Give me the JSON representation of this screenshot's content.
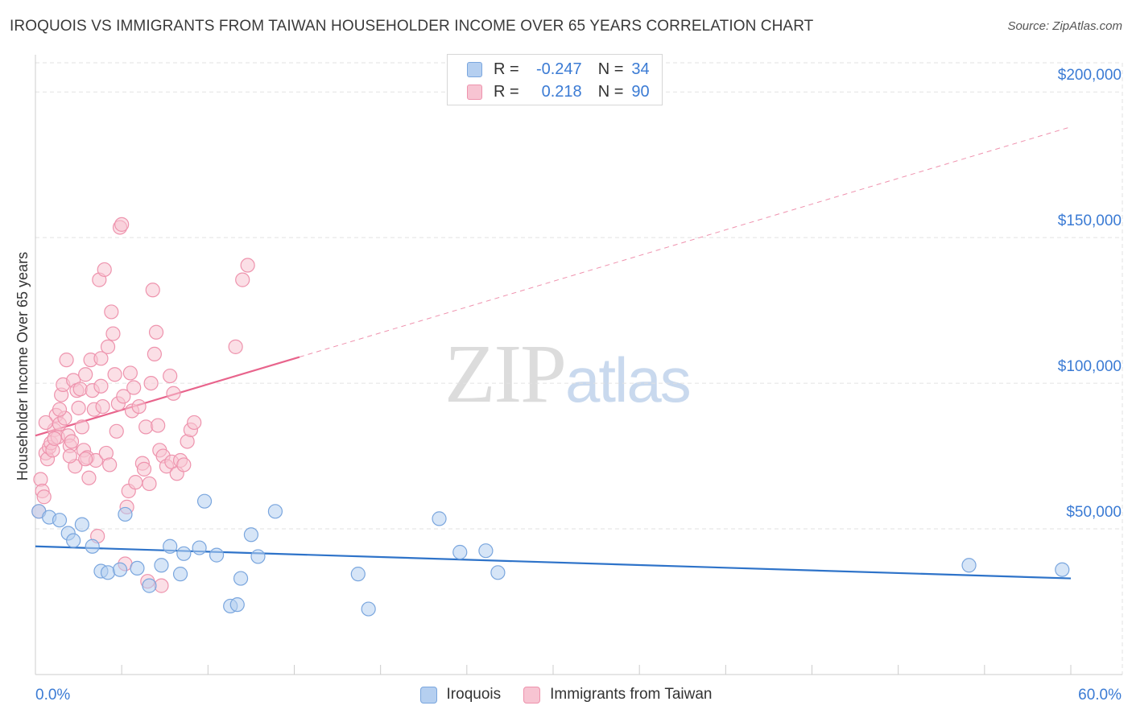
{
  "header": {
    "title": "IROQUOIS VS IMMIGRANTS FROM TAIWAN HOUSEHOLDER INCOME OVER 65 YEARS CORRELATION CHART",
    "source": "Source: ZipAtlas.com"
  },
  "watermark": {
    "zip": "ZIP",
    "atlas": "atlas"
  },
  "legend": {
    "rows": [
      {
        "r_label": "R =",
        "r_value": "-0.247",
        "n_label": "N =",
        "n_value": "34"
      },
      {
        "r_label": "R =",
        "r_value": "0.218",
        "n_label": "N =",
        "n_value": "90"
      }
    ]
  },
  "chart_data": {
    "type": "scatter",
    "title": "IROQUOIS VS IMMIGRANTS FROM TAIWAN HOUSEHOLDER INCOME OVER 65 YEARS CORRELATION CHART",
    "xlabel": "",
    "ylabel": "Householder Income Over 65 years",
    "xlim": [
      0,
      60
    ],
    "ylim": [
      0,
      210000
    ],
    "x_tick_labels": [
      "0.0%",
      "60.0%"
    ],
    "y_ticks": [
      {
        "value": 50000,
        "label": "$50,000"
      },
      {
        "value": 100000,
        "label": "$100,000"
      },
      {
        "value": 150000,
        "label": "$150,000"
      },
      {
        "value": 200000,
        "label": "$200,000"
      }
    ],
    "grid": true,
    "legend_position": "top-center",
    "colors": {
      "iroquois_fill": "#b5cff0",
      "iroquois_stroke": "#7aa6de",
      "iroquois_line": "#2e73c9",
      "taiwan_fill": "#f7c4d2",
      "taiwan_stroke": "#ee93ad",
      "taiwan_line": "#e8648c",
      "grid": "#e2e2e2",
      "axis_label": "#3b7bd4"
    },
    "series": [
      {
        "name": "Iroquois",
        "r": -0.247,
        "n": 34,
        "trend": {
          "x0": 0,
          "y0": 44000,
          "x1": 60,
          "y1": 33000,
          "dashed_extension_to": null
        },
        "points": [
          [
            0.2,
            56000
          ],
          [
            0.8,
            54000
          ],
          [
            1.4,
            53000
          ],
          [
            1.9,
            48500
          ],
          [
            2.2,
            46000
          ],
          [
            2.7,
            51500
          ],
          [
            3.3,
            44000
          ],
          [
            3.8,
            35500
          ],
          [
            4.2,
            35000
          ],
          [
            4.9,
            36000
          ],
          [
            5.2,
            55000
          ],
          [
            5.9,
            36500
          ],
          [
            6.6,
            30500
          ],
          [
            7.3,
            37500
          ],
          [
            7.8,
            44000
          ],
          [
            8.4,
            34500
          ],
          [
            8.6,
            41500
          ],
          [
            9.5,
            43500
          ],
          [
            9.8,
            59500
          ],
          [
            10.5,
            41000
          ],
          [
            11.3,
            23500
          ],
          [
            11.7,
            24000
          ],
          [
            11.9,
            33000
          ],
          [
            12.5,
            48000
          ],
          [
            12.9,
            40500
          ],
          [
            13.9,
            56000
          ],
          [
            18.7,
            34500
          ],
          [
            19.3,
            22500
          ],
          [
            23.4,
            53500
          ],
          [
            24.6,
            42000
          ],
          [
            26.1,
            42500
          ],
          [
            26.8,
            35000
          ],
          [
            54.1,
            37500
          ],
          [
            59.5,
            36000
          ]
        ]
      },
      {
        "name": "Immigrants from Taiwan",
        "r": 0.218,
        "n": 90,
        "trend": {
          "x0": 0,
          "y0": 82000,
          "x1": 15.3,
          "y1": 109000,
          "dashed_extension_to": [
            60,
            188000
          ]
        },
        "points": [
          [
            0.3,
            67000
          ],
          [
            0.4,
            63000
          ],
          [
            0.5,
            61000
          ],
          [
            0.6,
            76000
          ],
          [
            0.7,
            74000
          ],
          [
            0.8,
            78000
          ],
          [
            0.9,
            79500
          ],
          [
            1.0,
            77000
          ],
          [
            1.1,
            84000
          ],
          [
            1.2,
            89000
          ],
          [
            1.3,
            81500
          ],
          [
            1.4,
            86000
          ],
          [
            1.5,
            96000
          ],
          [
            1.6,
            99500
          ],
          [
            1.7,
            88000
          ],
          [
            1.8,
            108000
          ],
          [
            1.9,
            82000
          ],
          [
            2.0,
            78500
          ],
          [
            2.1,
            80000
          ],
          [
            2.2,
            101000
          ],
          [
            2.3,
            71500
          ],
          [
            2.4,
            97500
          ],
          [
            2.5,
            91500
          ],
          [
            2.6,
            98000
          ],
          [
            2.7,
            85000
          ],
          [
            2.8,
            77000
          ],
          [
            2.9,
            103000
          ],
          [
            3.0,
            74500
          ],
          [
            3.1,
            67500
          ],
          [
            3.2,
            108000
          ],
          [
            3.3,
            97500
          ],
          [
            3.4,
            91000
          ],
          [
            3.5,
            73500
          ],
          [
            3.6,
            47500
          ],
          [
            3.7,
            135500
          ],
          [
            3.8,
            99000
          ],
          [
            3.9,
            92000
          ],
          [
            4.0,
            139000
          ],
          [
            4.1,
            76000
          ],
          [
            4.2,
            112500
          ],
          [
            4.3,
            72000
          ],
          [
            4.4,
            124500
          ],
          [
            4.5,
            117000
          ],
          [
            4.6,
            103000
          ],
          [
            4.7,
            83500
          ],
          [
            4.8,
            93000
          ],
          [
            4.9,
            153500
          ],
          [
            5.0,
            154500
          ],
          [
            5.1,
            95500
          ],
          [
            5.2,
            38000
          ],
          [
            5.3,
            57500
          ],
          [
            5.4,
            63000
          ],
          [
            5.5,
            103500
          ],
          [
            5.6,
            90500
          ],
          [
            5.7,
            98500
          ],
          [
            5.8,
            66000
          ],
          [
            6.0,
            92000
          ],
          [
            6.2,
            72500
          ],
          [
            6.3,
            70500
          ],
          [
            6.4,
            85000
          ],
          [
            6.5,
            32000
          ],
          [
            6.6,
            65500
          ],
          [
            6.7,
            100000
          ],
          [
            6.8,
            132000
          ],
          [
            6.9,
            110000
          ],
          [
            7.0,
            117500
          ],
          [
            7.1,
            85500
          ],
          [
            7.2,
            77000
          ],
          [
            7.3,
            30500
          ],
          [
            7.4,
            75000
          ],
          [
            7.6,
            71500
          ],
          [
            7.8,
            102500
          ],
          [
            7.9,
            73000
          ],
          [
            8.0,
            96500
          ],
          [
            8.2,
            69000
          ],
          [
            8.4,
            73500
          ],
          [
            8.6,
            72000
          ],
          [
            8.8,
            80000
          ],
          [
            9.0,
            84000
          ],
          [
            9.2,
            86500
          ],
          [
            11.6,
            112500
          ],
          [
            12.0,
            135500
          ],
          [
            12.3,
            140500
          ],
          [
            1.1,
            81000
          ],
          [
            2.0,
            75000
          ],
          [
            0.2,
            56000
          ],
          [
            0.6,
            86500
          ],
          [
            2.9,
            74000
          ],
          [
            3.8,
            108500
          ],
          [
            1.4,
            91000
          ]
        ]
      }
    ]
  }
}
